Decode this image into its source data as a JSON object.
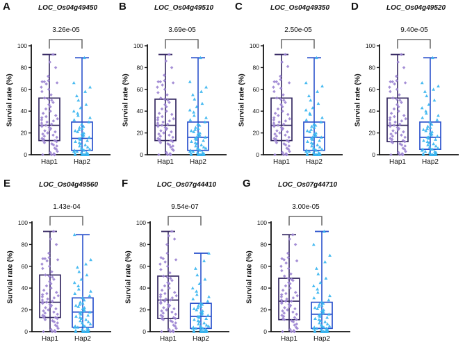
{
  "figure": {
    "background": "#ffffff",
    "ylabel": "Survial rate (%)",
    "yticks": [
      0,
      20,
      40,
      60,
      80,
      100
    ],
    "ylim": [
      0,
      100
    ],
    "categories": [
      "Hap1",
      "Hap2"
    ],
    "marker_shapes": {
      "Hap1": "diamond",
      "Hap2": "triangle"
    },
    "colors": {
      "hap1_box": "#372a63",
      "hap1_point": "#9d85d3",
      "hap2_box": "#2b52cc",
      "hap2_point": "#3ab5f0",
      "axis": "#111111",
      "bracket": "#4d4d4d",
      "text": "#111111"
    }
  },
  "chart_data": [
    {
      "type": "boxplot",
      "panel": "A",
      "title": "LOC_Os04g49450",
      "p_value": "3.26e-05",
      "ylabel": "Survial rate (%)",
      "xlabel": "",
      "ylim": [
        0,
        100
      ],
      "categories": [
        "Hap1",
        "Hap2"
      ],
      "series": [
        {
          "name": "Hap1",
          "whisker_low": 0,
          "q1": 13,
          "median": 27,
          "q3": 52,
          "whisker_high": 92,
          "points": [
            0,
            0,
            0,
            0,
            1,
            2,
            3,
            5,
            6,
            8,
            9,
            10,
            11,
            12,
            13,
            13,
            14,
            15,
            16,
            17,
            18,
            19,
            20,
            21,
            22,
            23,
            24,
            25,
            26,
            27,
            27,
            28,
            29,
            30,
            31,
            32,
            33,
            34,
            35,
            36,
            38,
            40,
            42,
            44,
            46,
            48,
            50,
            51,
            52,
            55,
            58,
            60,
            62,
            65,
            66,
            67,
            67,
            68,
            72,
            80,
            85,
            92
          ]
        },
        {
          "name": "Hap2",
          "whisker_low": 0,
          "q1": 4,
          "median": 15,
          "q3": 30,
          "whisker_high": 89,
          "points": [
            0,
            0,
            0,
            0,
            0,
            0,
            0,
            0,
            0,
            0,
            1,
            1,
            2,
            2,
            3,
            3,
            4,
            4,
            5,
            5,
            6,
            7,
            8,
            9,
            10,
            11,
            12,
            13,
            14,
            15,
            15,
            16,
            17,
            18,
            19,
            20,
            21,
            22,
            23,
            24,
            25,
            26,
            28,
            30,
            32,
            34,
            36,
            38,
            40,
            43,
            46,
            50,
            54,
            58,
            62,
            66,
            89
          ]
        }
      ]
    },
    {
      "type": "boxplot",
      "panel": "B",
      "title": "LOC_Os04g49510",
      "p_value": "3.69e-05",
      "ylabel": "Survial rate (%)",
      "xlabel": "",
      "ylim": [
        0,
        100
      ],
      "categories": [
        "Hap1",
        "Hap2"
      ],
      "series": [
        {
          "name": "Hap1",
          "whisker_low": 0,
          "q1": 13,
          "median": 27,
          "q3": 51,
          "whisker_high": 92,
          "points": [
            0,
            0,
            0,
            0,
            1,
            2,
            4,
            5,
            7,
            8,
            9,
            10,
            11,
            12,
            13,
            13,
            14,
            15,
            16,
            17,
            18,
            19,
            20,
            21,
            22,
            23,
            24,
            25,
            26,
            27,
            27,
            28,
            29,
            30,
            31,
            32,
            33,
            34,
            35,
            37,
            38,
            40,
            42,
            44,
            46,
            48,
            50,
            51,
            52,
            55,
            57,
            60,
            62,
            64,
            66,
            67,
            67,
            68,
            73,
            80,
            86,
            92
          ]
        },
        {
          "name": "Hap2",
          "whisker_low": 0,
          "q1": 4,
          "median": 16,
          "q3": 30,
          "whisker_high": 89,
          "points": [
            0,
            0,
            0,
            0,
            0,
            0,
            0,
            0,
            0,
            0,
            1,
            1,
            2,
            2,
            3,
            3,
            4,
            4,
            5,
            6,
            6,
            7,
            8,
            9,
            10,
            11,
            12,
            13,
            14,
            15,
            16,
            16,
            17,
            18,
            19,
            20,
            21,
            22,
            23,
            24,
            25,
            27,
            28,
            30,
            32,
            34,
            36,
            39,
            41,
            44,
            47,
            51,
            55,
            58,
            62,
            67,
            89
          ]
        }
      ]
    },
    {
      "type": "boxplot",
      "panel": "C",
      "title": "LOC_Os04g49350",
      "p_value": "2.50e-05",
      "ylabel": "Survial rate (%)",
      "xlabel": "",
      "ylim": [
        0,
        100
      ],
      "categories": [
        "Hap1",
        "Hap2"
      ],
      "series": [
        {
          "name": "Hap1",
          "whisker_low": 0,
          "q1": 13,
          "median": 27,
          "q3": 52,
          "whisker_high": 92,
          "points": [
            0,
            0,
            0,
            0,
            1,
            2,
            3,
            5,
            6,
            8,
            9,
            10,
            11,
            12,
            13,
            13,
            14,
            15,
            16,
            17,
            18,
            19,
            20,
            21,
            22,
            23,
            24,
            25,
            26,
            27,
            27,
            28,
            29,
            30,
            31,
            32,
            33,
            34,
            36,
            37,
            38,
            40,
            42,
            44,
            46,
            48,
            50,
            51,
            52,
            55,
            58,
            61,
            62,
            65,
            66,
            67,
            67,
            69,
            72,
            81,
            85,
            92
          ]
        },
        {
          "name": "Hap2",
          "whisker_low": 0,
          "q1": 4,
          "median": 16,
          "q3": 30,
          "whisker_high": 89,
          "points": [
            0,
            0,
            0,
            0,
            0,
            0,
            0,
            0,
            0,
            0,
            1,
            1,
            2,
            2,
            3,
            3,
            4,
            4,
            5,
            5,
            6,
            7,
            8,
            9,
            10,
            11,
            12,
            13,
            14,
            15,
            16,
            16,
            17,
            18,
            19,
            20,
            21,
            22,
            23,
            25,
            26,
            27,
            28,
            30,
            32,
            34,
            37,
            38,
            41,
            43,
            47,
            50,
            54,
            58,
            63,
            66,
            89
          ]
        }
      ]
    },
    {
      "type": "boxplot",
      "panel": "D",
      "title": "LOC_Os04g49520",
      "p_value": "9.40e-05",
      "ylabel": "Survial rate (%)",
      "xlabel": "",
      "ylim": [
        0,
        100
      ],
      "categories": [
        "Hap1",
        "Hap2"
      ],
      "series": [
        {
          "name": "Hap1",
          "whisker_low": 0,
          "q1": 12,
          "median": 27,
          "q3": 52,
          "whisker_high": 92,
          "points": [
            0,
            0,
            0,
            0,
            1,
            2,
            3,
            5,
            6,
            8,
            9,
            10,
            11,
            12,
            12,
            13,
            14,
            15,
            16,
            17,
            18,
            19,
            20,
            21,
            22,
            23,
            24,
            25,
            26,
            27,
            27,
            28,
            29,
            30,
            31,
            32,
            33,
            34,
            35,
            36,
            38,
            40,
            42,
            44,
            46,
            48,
            50,
            51,
            52,
            55,
            58,
            60,
            62,
            65,
            66,
            67,
            67,
            68,
            72,
            80,
            85,
            92
          ]
        },
        {
          "name": "Hap2",
          "whisker_low": 0,
          "q1": 5,
          "median": 16,
          "q3": 30,
          "whisker_high": 89,
          "points": [
            0,
            0,
            0,
            0,
            0,
            0,
            0,
            0,
            0,
            1,
            1,
            2,
            2,
            3,
            3,
            4,
            5,
            5,
            5,
            6,
            7,
            8,
            9,
            10,
            11,
            12,
            13,
            14,
            15,
            16,
            16,
            17,
            18,
            19,
            20,
            21,
            22,
            23,
            24,
            25,
            26,
            28,
            30,
            32,
            34,
            36,
            38,
            40,
            43,
            46,
            50,
            54,
            58,
            60,
            63,
            66,
            89
          ]
        }
      ]
    },
    {
      "type": "boxplot",
      "panel": "E",
      "title": "LOC_Os04g49560",
      "p_value": "1.43e-04",
      "ylabel": "Survial rate (%)",
      "xlabel": "",
      "ylim": [
        0,
        100
      ],
      "categories": [
        "Hap1",
        "Hap2"
      ],
      "series": [
        {
          "name": "Hap1",
          "whisker_low": 0,
          "q1": 13,
          "median": 27,
          "q3": 52,
          "whisker_high": 92,
          "points": [
            0,
            0,
            0,
            0,
            1,
            2,
            3,
            5,
            6,
            8,
            9,
            10,
            11,
            12,
            13,
            13,
            14,
            15,
            16,
            17,
            18,
            19,
            20,
            21,
            22,
            23,
            24,
            25,
            26,
            27,
            27,
            28,
            29,
            30,
            31,
            32,
            33,
            34,
            35,
            36,
            38,
            40,
            42,
            44,
            46,
            48,
            50,
            51,
            52,
            55,
            58,
            60,
            62,
            65,
            66,
            67,
            67,
            68,
            72,
            80,
            85,
            92
          ]
        },
        {
          "name": "Hap2",
          "whisker_low": 0,
          "q1": 4,
          "median": 18,
          "q3": 31,
          "whisker_high": 89,
          "points": [
            0,
            0,
            0,
            0,
            0,
            0,
            0,
            0,
            0,
            1,
            1,
            2,
            2,
            3,
            4,
            4,
            5,
            5,
            6,
            7,
            8,
            9,
            10,
            11,
            12,
            13,
            14,
            15,
            16,
            17,
            18,
            18,
            19,
            20,
            21,
            22,
            23,
            24,
            25,
            26,
            27,
            29,
            31,
            33,
            35,
            37,
            39,
            42,
            45,
            48,
            52,
            55,
            59,
            62,
            66,
            89
          ]
        }
      ]
    },
    {
      "type": "boxplot",
      "panel": "F",
      "title": "LOC_Os07g44410",
      "p_value": "9.54e-07",
      "ylabel": "Survial rate (%)",
      "xlabel": "",
      "ylim": [
        0,
        100
      ],
      "categories": [
        "Hap1",
        "Hap2"
      ],
      "series": [
        {
          "name": "Hap1",
          "whisker_low": 0,
          "q1": 12,
          "median": 29,
          "q3": 51,
          "whisker_high": 92,
          "points": [
            0,
            0,
            0,
            0,
            1,
            2,
            3,
            5,
            6,
            8,
            9,
            10,
            11,
            12,
            12,
            13,
            14,
            15,
            16,
            17,
            18,
            19,
            20,
            21,
            22,
            23,
            24,
            25,
            26,
            27,
            28,
            29,
            29,
            30,
            31,
            32,
            33,
            34,
            35,
            36,
            38,
            40,
            42,
            44,
            45,
            47,
            49,
            50,
            51,
            54,
            57,
            60,
            62,
            64,
            66,
            67,
            68,
            72,
            80,
            85,
            88,
            92
          ]
        },
        {
          "name": "Hap2",
          "whisker_low": 0,
          "q1": 3,
          "median": 14,
          "q3": 26,
          "whisker_high": 72,
          "points": [
            0,
            0,
            0,
            0,
            0,
            0,
            0,
            0,
            0,
            0,
            1,
            1,
            2,
            2,
            3,
            3,
            3,
            4,
            4,
            5,
            5,
            6,
            7,
            8,
            9,
            10,
            11,
            12,
            13,
            14,
            14,
            15,
            16,
            17,
            18,
            19,
            20,
            21,
            22,
            23,
            24,
            25,
            26,
            28,
            30,
            32,
            34,
            37,
            40,
            44,
            48,
            52,
            58,
            65,
            72
          ]
        }
      ]
    },
    {
      "type": "boxplot",
      "panel": "G",
      "title": "LOC_Os07g44710",
      "p_value": "3.00e-05",
      "ylabel": "Survial rate (%)",
      "xlabel": "",
      "ylim": [
        0,
        100
      ],
      "categories": [
        "Hap1",
        "Hap2"
      ],
      "series": [
        {
          "name": "Hap1",
          "whisker_low": 0,
          "q1": 11,
          "median": 28,
          "q3": 49,
          "whisker_high": 89,
          "points": [
            0,
            0,
            0,
            0,
            1,
            2,
            3,
            4,
            6,
            7,
            9,
            10,
            11,
            11,
            12,
            13,
            14,
            15,
            16,
            17,
            18,
            19,
            20,
            21,
            22,
            23,
            24,
            25,
            26,
            27,
            28,
            28,
            29,
            30,
            31,
            32,
            33,
            34,
            35,
            36,
            38,
            40,
            42,
            44,
            45,
            47,
            48,
            49,
            51,
            53,
            56,
            58,
            60,
            63,
            65,
            66,
            67,
            68,
            72,
            80,
            85,
            89
          ]
        },
        {
          "name": "Hap2",
          "whisker_low": 0,
          "q1": 3,
          "median": 16,
          "q3": 27,
          "whisker_high": 92,
          "points": [
            0,
            0,
            0,
            0,
            0,
            0,
            0,
            0,
            0,
            1,
            1,
            2,
            2,
            3,
            3,
            3,
            4,
            4,
            5,
            5,
            6,
            7,
            8,
            9,
            10,
            11,
            12,
            13,
            14,
            15,
            16,
            16,
            17,
            18,
            19,
            20,
            21,
            22,
            23,
            24,
            25,
            26,
            27,
            29,
            31,
            33,
            36,
            39,
            42,
            45,
            49,
            53,
            58,
            64,
            70,
            80,
            92
          ]
        }
      ]
    }
  ]
}
